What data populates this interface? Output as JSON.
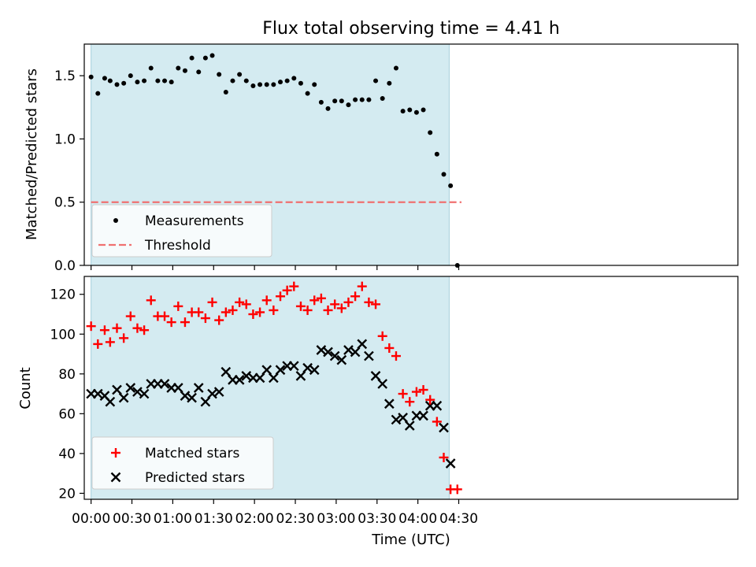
{
  "chart_data": {
    "title": "Flux total observing time = 4.41 h",
    "xlabel": "Time (UTC)",
    "xlim": [
      -5,
      475
    ],
    "xticks": [
      {
        "v": 0,
        "label": "00:00"
      },
      {
        "v": 30,
        "label": "00:30"
      },
      {
        "v": 60,
        "label": "01:00"
      },
      {
        "v": 90,
        "label": "01:30"
      },
      {
        "v": 120,
        "label": "02:00"
      },
      {
        "v": 150,
        "label": "02:30"
      },
      {
        "v": 180,
        "label": "03:00"
      },
      {
        "v": 210,
        "label": "03:30"
      },
      {
        "v": 240,
        "label": "04:00"
      },
      {
        "v": 270,
        "label": "04:30"
      }
    ],
    "observing_window": [
      0,
      263
    ],
    "top": {
      "type": "scatter",
      "ylabel": "Matched/Predicted stars",
      "ylim": [
        0,
        1.75
      ],
      "yticks": [
        {
          "v": 0,
          "label": "0.0"
        },
        {
          "v": 0.5,
          "label": "0.5"
        },
        {
          "v": 1.0,
          "label": "1.0"
        },
        {
          "v": 1.5,
          "label": "1.5"
        }
      ],
      "threshold": 0.5,
      "legend": [
        "Measurements",
        "Threshold"
      ],
      "x": [
        0,
        5,
        10,
        14,
        19,
        24,
        29,
        34,
        39,
        44,
        49,
        54,
        59,
        64,
        69,
        74,
        79,
        84,
        89,
        94,
        99,
        104,
        109,
        114,
        119,
        124,
        129,
        134,
        139,
        144,
        149,
        154,
        159,
        164,
        169,
        174,
        179,
        184,
        189,
        194,
        199,
        204,
        209,
        214,
        219,
        224,
        229,
        234,
        239,
        244,
        249,
        254,
        259,
        264,
        269
      ],
      "y": [
        1.49,
        1.36,
        1.48,
        1.46,
        1.43,
        1.44,
        1.5,
        1.45,
        1.46,
        1.56,
        1.46,
        1.46,
        1.45,
        1.56,
        1.54,
        1.64,
        1.53,
        1.64,
        1.66,
        1.51,
        1.37,
        1.46,
        1.51,
        1.46,
        1.42,
        1.43,
        1.43,
        1.43,
        1.45,
        1.46,
        1.48,
        1.44,
        1.36,
        1.43,
        1.29,
        1.24,
        1.3,
        1.3,
        1.27,
        1.31,
        1.31,
        1.31,
        1.46,
        1.32,
        1.44,
        1.56,
        1.22,
        1.23,
        1.21,
        1.23,
        1.05,
        0.88,
        0.72,
        0.63,
        0.0
      ]
    },
    "bottom": {
      "type": "scatter",
      "ylabel": "Count",
      "ylim": [
        17,
        129
      ],
      "yticks": [
        {
          "v": 20,
          "label": "20"
        },
        {
          "v": 40,
          "label": "40"
        },
        {
          "v": 60,
          "label": "60"
        },
        {
          "v": 80,
          "label": "80"
        },
        {
          "v": 100,
          "label": "100"
        },
        {
          "v": 120,
          "label": "120"
        }
      ],
      "series": [
        {
          "name": "Matched stars",
          "marker": "plus",
          "x": [
            0,
            5,
            10,
            14,
            19,
            24,
            29,
            34,
            39,
            44,
            49,
            54,
            59,
            64,
            69,
            74,
            79,
            84,
            89,
            94,
            99,
            104,
            109,
            114,
            119,
            124,
            129,
            134,
            139,
            144,
            149,
            154,
            159,
            164,
            169,
            174,
            179,
            184,
            189,
            194,
            199,
            204,
            209,
            214,
            219,
            224,
            229,
            234,
            239,
            244,
            249,
            254,
            259,
            264,
            269
          ],
          "values": [
            104,
            95,
            102,
            96,
            103,
            98,
            109,
            103,
            102,
            117,
            109,
            109,
            106,
            114,
            106,
            111,
            111,
            108,
            116,
            107,
            111,
            112,
            116,
            115,
            110,
            111,
            117,
            112,
            119,
            122,
            124,
            114,
            112,
            117,
            118,
            112,
            115,
            113,
            116,
            119,
            124,
            116,
            115,
            99,
            93,
            89,
            70,
            66,
            71,
            72,
            67,
            56,
            38,
            22,
            22
          ]
        },
        {
          "name": "Predicted stars",
          "marker": "cross",
          "x": [
            0,
            5,
            10,
            14,
            19,
            24,
            29,
            34,
            39,
            44,
            49,
            54,
            59,
            64,
            69,
            74,
            79,
            84,
            89,
            94,
            99,
            104,
            109,
            114,
            119,
            124,
            129,
            134,
            139,
            144,
            149,
            154,
            159,
            164,
            169,
            174,
            179,
            184,
            189,
            194,
            199,
            204,
            209,
            214,
            219,
            224,
            229,
            234,
            239,
            244,
            249,
            254,
            259,
            264
          ],
          "values": [
            70,
            70,
            69,
            66,
            72,
            68,
            73,
            71,
            70,
            75,
            75,
            75,
            73,
            73,
            69,
            68,
            73,
            66,
            70,
            71,
            81,
            77,
            77,
            79,
            78,
            78,
            82,
            78,
            82,
            84,
            84,
            79,
            83,
            82,
            92,
            91,
            89,
            87,
            92,
            91,
            95,
            89,
            79,
            75,
            65,
            57,
            58,
            54,
            59,
            59,
            64,
            64,
            53,
            35
          ]
        }
      ]
    },
    "colors": {
      "window": "#d4ebf1",
      "window_edge": "#a6d0dc",
      "threshold": "#f07070",
      "matched": "#ff0000",
      "predicted": "#000000"
    }
  }
}
